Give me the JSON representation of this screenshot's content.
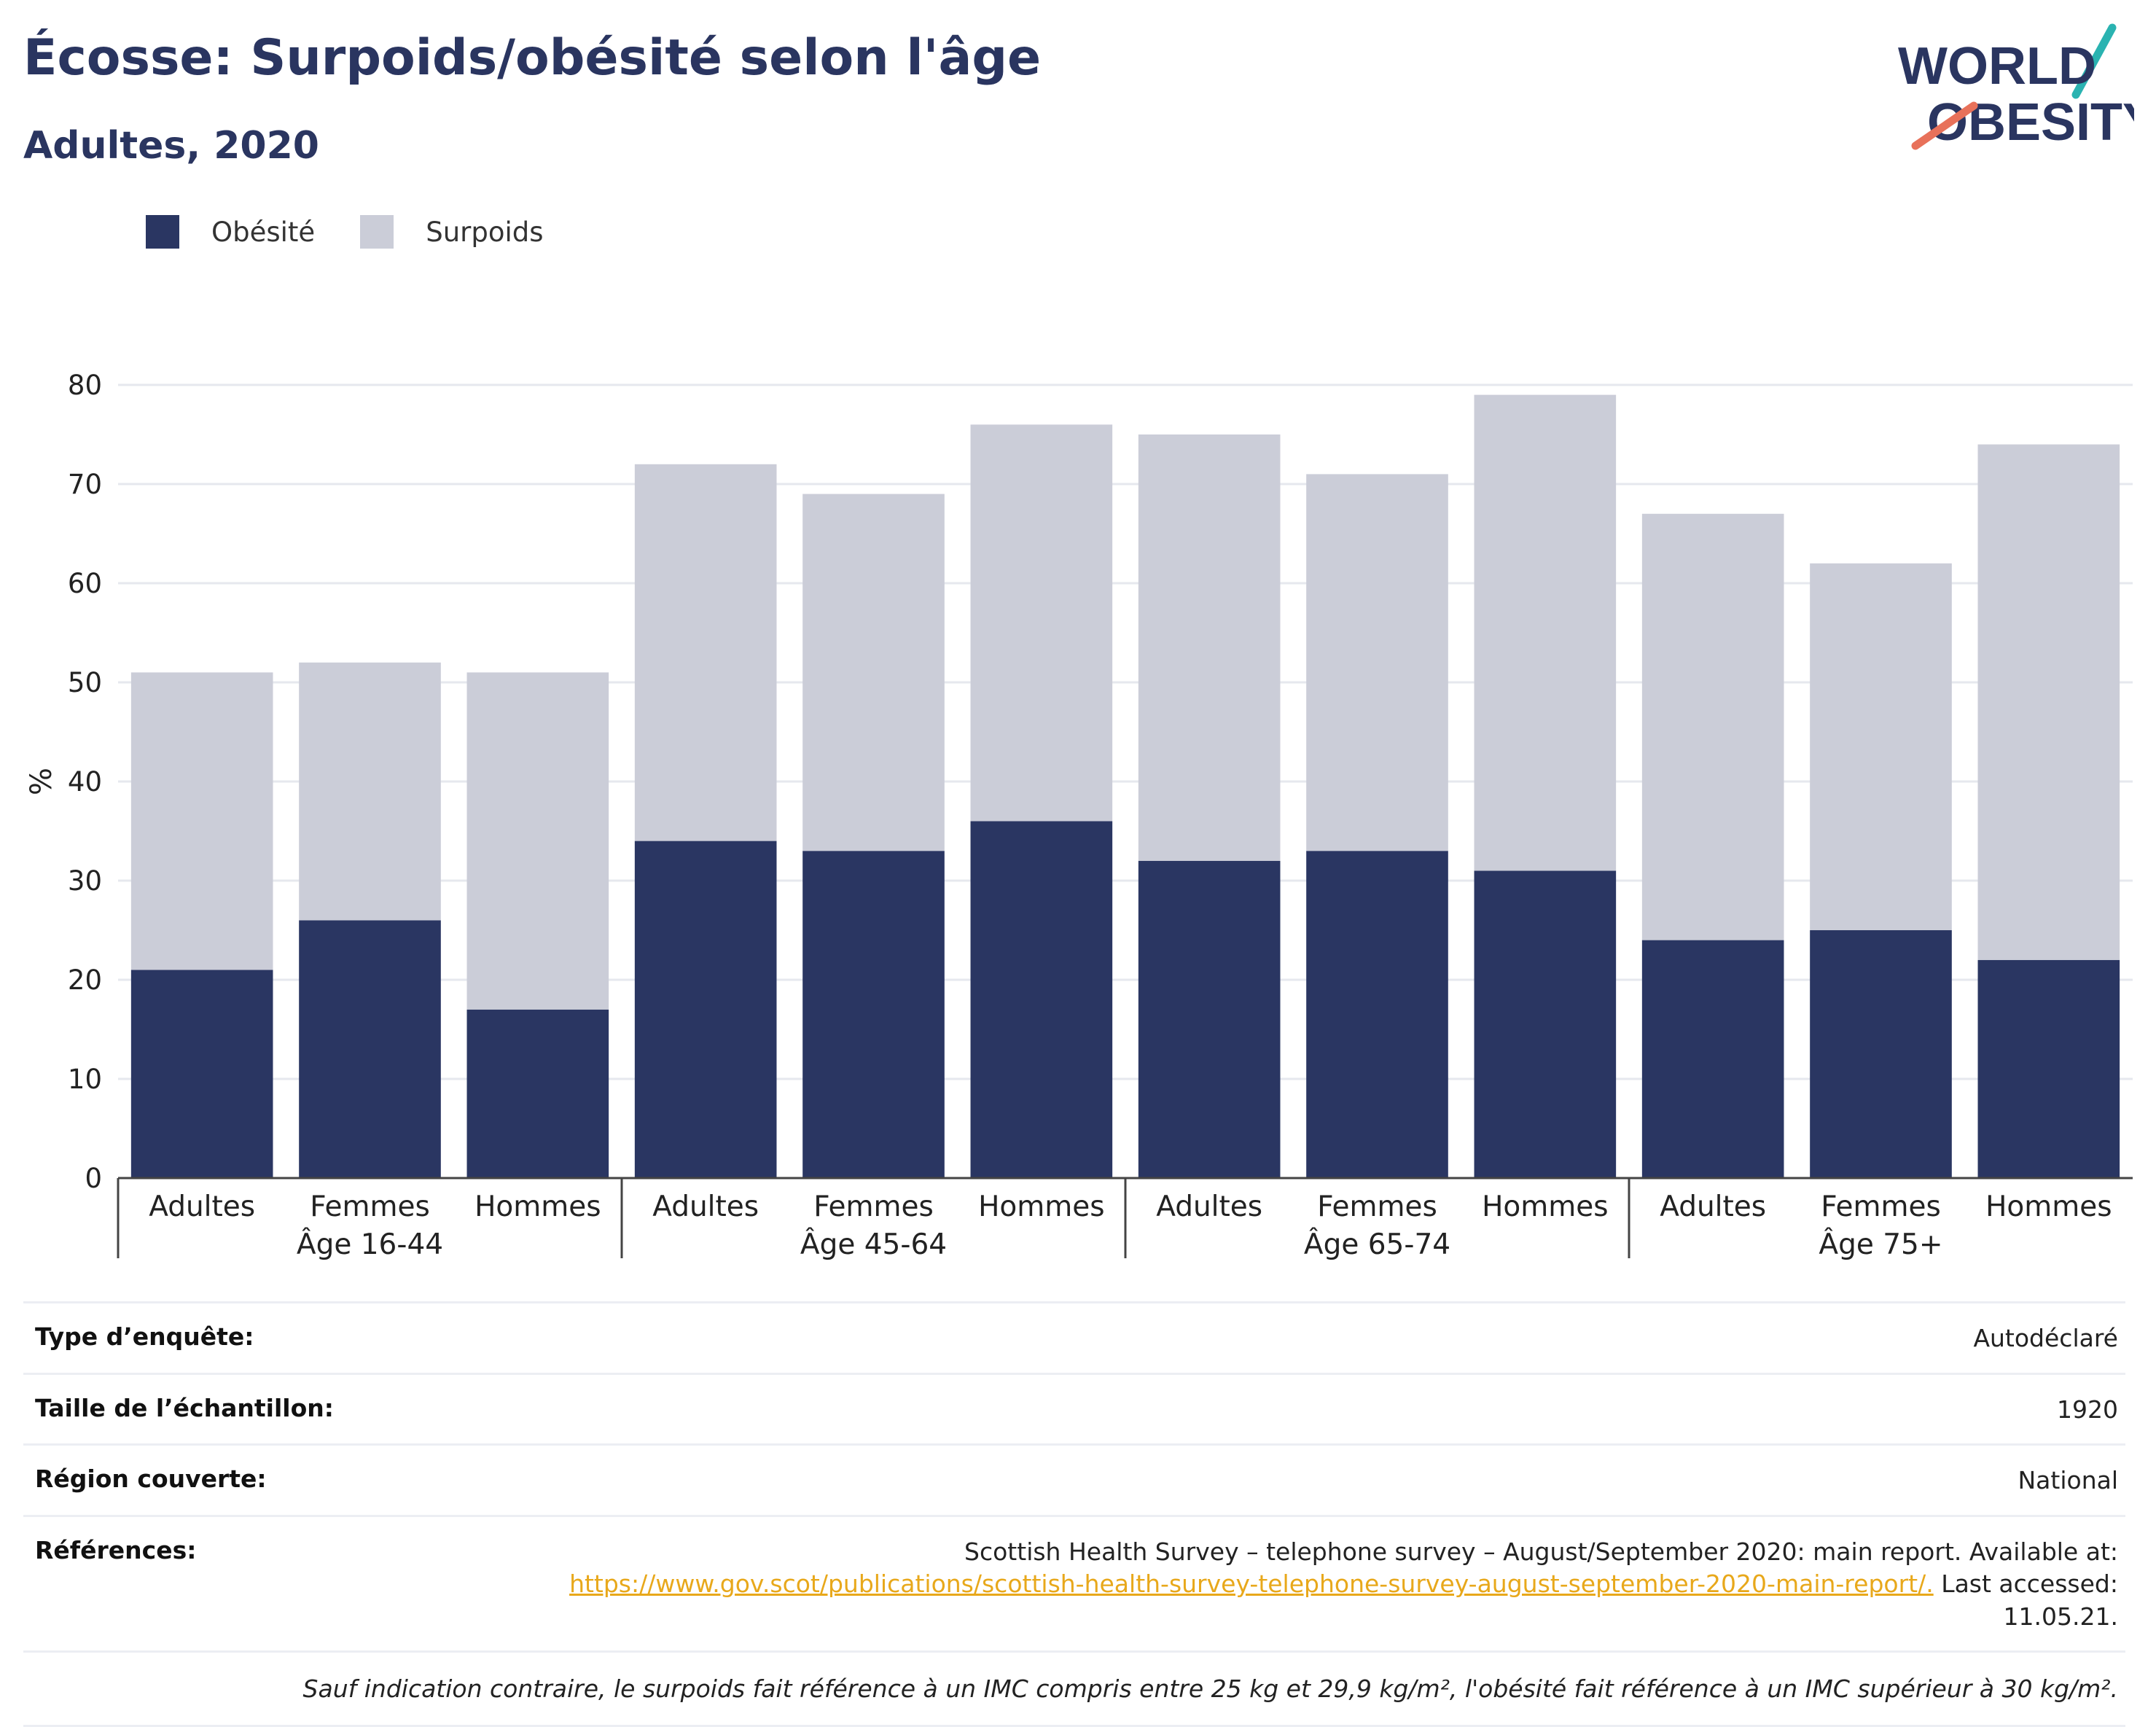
{
  "header": {
    "title": "Écosse: Surpoids/obésité selon l'âge",
    "subtitle": "Adultes, 2020"
  },
  "logo": {
    "line1": "WORLD",
    "line2": "OBESITY"
  },
  "colors": {
    "obesite": "#2a3662",
    "surpoids": "#cbcdd8",
    "accent_link": "#e8a81b"
  },
  "chart_data": {
    "type": "bar",
    "stacked": true,
    "ylabel": "%",
    "ylim": [
      0,
      80
    ],
    "yticks": [
      0,
      10,
      20,
      30,
      40,
      50,
      60,
      70,
      80
    ],
    "grid": true,
    "legend_position": "top-left",
    "groups": [
      {
        "label": "Âge 16-44",
        "categories": [
          "Adultes",
          "Femmes",
          "Hommes"
        ]
      },
      {
        "label": "Âge 45-64",
        "categories": [
          "Adultes",
          "Femmes",
          "Hommes"
        ]
      },
      {
        "label": "Âge 65-74",
        "categories": [
          "Adultes",
          "Femmes",
          "Hommes"
        ]
      },
      {
        "label": "Âge 75+",
        "categories": [
          "Adultes",
          "Femmes",
          "Hommes"
        ]
      }
    ],
    "series": [
      {
        "name": "Obésité",
        "values": [
          21,
          26,
          17,
          34,
          33,
          36,
          32,
          33,
          31,
          24,
          25,
          22
        ]
      },
      {
        "name": "Surpoids",
        "values": [
          30,
          26,
          34,
          38,
          36,
          40,
          43,
          38,
          48,
          43,
          37,
          52
        ]
      }
    ]
  },
  "info": {
    "rows": [
      {
        "label": "Type d’enquête:",
        "value": "Autodéclaré"
      },
      {
        "label": "Taille de l’échantillon:",
        "value": "1920"
      },
      {
        "label": "Région couverte:",
        "value": "National"
      }
    ],
    "references": {
      "label": "Références:",
      "text_before": "Scottish Health Survey – telephone survey – August/September 2020: main report. Available at:",
      "link": "https://www.gov.scot/publications/scottish-health-survey-telephone-survey-august-september-2020-main-report/.",
      "text_after": " Last accessed: 11.05.21."
    },
    "note": "Sauf indication contraire, le surpoids fait référence à un IMC compris entre 25 kg et 29,9 kg/m², l'obésité fait référence à un IMC supérieur à 30 kg/m²."
  }
}
